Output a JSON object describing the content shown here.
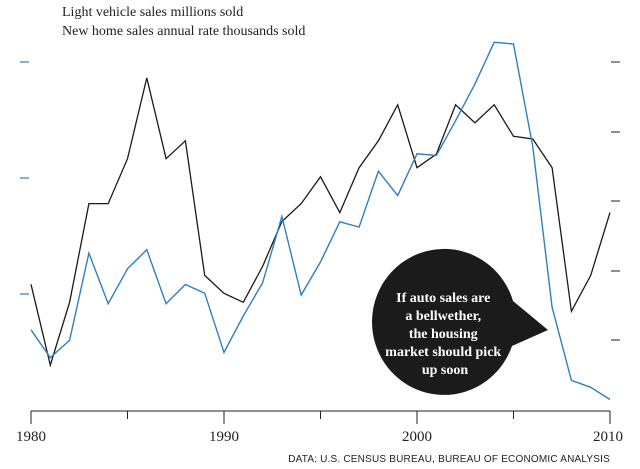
{
  "chart_data": {
    "type": "line",
    "legend": [
      "Light vehicle sales   millions sold",
      "New home sales annual rate   thousands sold"
    ],
    "x": [
      1980,
      1981,
      1982,
      1983,
      1984,
      1985,
      1986,
      1987,
      1988,
      1989,
      1990,
      1991,
      1992,
      1993,
      1994,
      1995,
      1996,
      1997,
      1998,
      1999,
      2000,
      2001,
      2002,
      2003,
      2004,
      2005,
      2006,
      2007,
      2008,
      2009,
      2010
    ],
    "xticks": [
      "1980",
      "1990",
      "2000",
      "2010"
    ],
    "series": [
      {
        "color": "#1a1a1a",
        "values": [
          11.4,
          10.5,
          11.2,
          12.3,
          12.3,
          12.8,
          13.7,
          12.8,
          13.0,
          11.5,
          11.3,
          11.2,
          11.6,
          12.1,
          12.3,
          12.6,
          12.2,
          12.7,
          13.0,
          13.4,
          12.7,
          12.85,
          13.4,
          13.2,
          13.4,
          13.05,
          13.02,
          12.7,
          11.1,
          11.5,
          12.2
        ]
      },
      {
        "color": "#2f7fc1",
        "values": [
          480,
          400,
          450,
          700,
          555,
          655,
          710,
          555,
          610,
          585,
          415,
          520,
          615,
          805,
          580,
          675,
          790,
          775,
          935,
          865,
          985,
          980,
          1080,
          1185,
          1305,
          1300,
          1005,
          545,
          335,
          315,
          280
        ]
      }
    ],
    "annotation": "If auto sales are a bellwether, the housing market should pick up soon",
    "source": "DATA: U.S. CENSUS BUREAU, BUREAU OF ECONOMIC ANALYSIS"
  }
}
